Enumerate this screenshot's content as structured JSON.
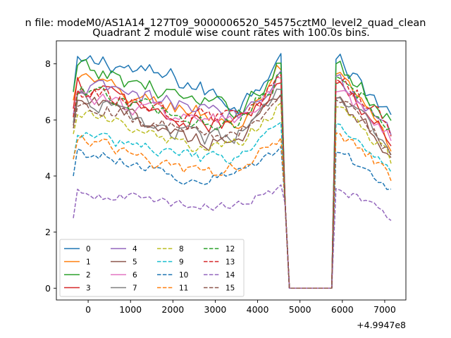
{
  "chart_data": {
    "type": "line",
    "suptitle": "n file: modeM0/AS1A14_127T09_9000006520_54575cztM0_level2_quad_clean",
    "title": "Quadrant 2 module wise count rates with 100.0s bins.",
    "xlabel": "",
    "ylabel": "",
    "x_offset_label": "+4.9947e8",
    "xlim": [
      -750,
      7500
    ],
    "ylim": [
      -0.42,
      8.82
    ],
    "xticks": [
      0,
      1000,
      2000,
      3000,
      4000,
      5000,
      6000,
      7000
    ],
    "xtick_labels": [
      "0",
      "1000",
      "2000",
      "3000",
      "4000",
      "5000",
      "6000",
      "7000"
    ],
    "yticks": [
      0,
      2,
      4,
      6,
      8
    ],
    "ytick_labels": [
      "0",
      "2",
      "4",
      "6",
      "8"
    ],
    "x_segments": [
      [
        -350,
        4550
      ],
      [
        4750,
        5750
      ],
      [
        5850,
        7150
      ]
    ],
    "x_step": 100,
    "gap_range": [
      4750,
      5750
    ],
    "legend_position": "lower-left",
    "series": [
      {
        "name": "0",
        "color": "#1f77b4",
        "dash": "solid",
        "levels": [
          7.9,
          8.1,
          7.7,
          7.5,
          7.0,
          6.5,
          8.4,
          0,
          8.2,
          7.2,
          6.2
        ],
        "noise": 0.32
      },
      {
        "name": "1",
        "color": "#ff7f0e",
        "dash": "solid",
        "levels": [
          7.6,
          7.2,
          6.7,
          6.5,
          6.2,
          5.8,
          7.6,
          0,
          7.6,
          6.5,
          5.0
        ],
        "noise": 0.28
      },
      {
        "name": "2",
        "color": "#2ca02c",
        "dash": "solid",
        "levels": [
          7.9,
          7.6,
          7.3,
          6.9,
          6.5,
          6.4,
          7.9,
          0,
          8.0,
          7.0,
          6.0
        ],
        "noise": 0.3
      },
      {
        "name": "3",
        "color": "#d62728",
        "dash": "solid",
        "levels": [
          7.3,
          7.0,
          6.5,
          6.0,
          5.8,
          5.9,
          7.2,
          0,
          7.3,
          6.3,
          5.2
        ],
        "noise": 0.28
      },
      {
        "name": "4",
        "color": "#9467bd",
        "dash": "solid",
        "levels": [
          7.1,
          7.1,
          6.8,
          6.6,
          6.3,
          6.2,
          7.7,
          0,
          7.6,
          6.6,
          5.5
        ],
        "noise": 0.28
      },
      {
        "name": "5",
        "color": "#8c564b",
        "dash": "solid",
        "levels": [
          6.7,
          6.5,
          6.0,
          5.6,
          5.2,
          5.4,
          6.8,
          0,
          6.8,
          6.0,
          4.8
        ],
        "noise": 0.26
      },
      {
        "name": "6",
        "color": "#e377c2",
        "dash": "solid",
        "levels": [
          7.0,
          6.7,
          6.4,
          6.2,
          6.0,
          6.0,
          7.3,
          0,
          7.0,
          6.3,
          5.3
        ],
        "noise": 0.26
      },
      {
        "name": "7",
        "color": "#7f7f7f",
        "dash": "solid",
        "levels": [
          6.8,
          6.5,
          6.0,
          5.6,
          5.3,
          5.5,
          6.9,
          0,
          6.8,
          6.0,
          4.9
        ],
        "noise": 0.26
      },
      {
        "name": "8",
        "color": "#bcbd22",
        "dash": "dashed",
        "levels": [
          6.4,
          6.0,
          5.6,
          5.2,
          4.9,
          5.2,
          6.5,
          0,
          6.5,
          5.8,
          4.5
        ],
        "noise": 0.22
      },
      {
        "name": "9",
        "color": "#17becf",
        "dash": "dashed",
        "levels": [
          5.5,
          5.3,
          5.1,
          4.8,
          4.6,
          4.7,
          5.8,
          0,
          5.9,
          5.2,
          4.3
        ],
        "noise": 0.2
      },
      {
        "name": "10",
        "color": "#1f77b4",
        "dash": "dashed",
        "levels": [
          4.9,
          4.7,
          4.4,
          4.0,
          3.8,
          4.2,
          5.0,
          0,
          4.9,
          4.3,
          3.6
        ],
        "noise": 0.18
      },
      {
        "name": "11",
        "color": "#ff7f0e",
        "dash": "dashed",
        "levels": [
          5.5,
          5.1,
          4.6,
          4.3,
          4.1,
          4.4,
          5.3,
          0,
          5.6,
          4.9,
          4.0
        ],
        "noise": 0.2
      },
      {
        "name": "12",
        "color": "#2ca02c",
        "dash": "dashed",
        "levels": [
          7.0,
          6.8,
          6.5,
          6.2,
          6.0,
          6.0,
          7.5,
          0,
          7.6,
          6.8,
          5.8
        ],
        "noise": 0.26
      },
      {
        "name": "13",
        "color": "#d62728",
        "dash": "dashed",
        "levels": [
          7.0,
          6.8,
          6.5,
          6.2,
          6.1,
          6.1,
          7.4,
          0,
          7.5,
          6.7,
          5.6
        ],
        "noise": 0.26
      },
      {
        "name": "14",
        "color": "#9467bd",
        "dash": "dashed",
        "levels": [
          3.4,
          3.3,
          3.2,
          3.0,
          2.9,
          3.0,
          3.6,
          0,
          3.6,
          3.1,
          2.5
        ],
        "noise": 0.15
      },
      {
        "name": "15",
        "color": "#8c564b",
        "dash": "dashed",
        "levels": [
          6.6,
          6.4,
          6.0,
          5.7,
          5.5,
          5.6,
          6.8,
          0,
          6.8,
          6.0,
          4.9
        ],
        "noise": 0.22
      }
    ]
  }
}
